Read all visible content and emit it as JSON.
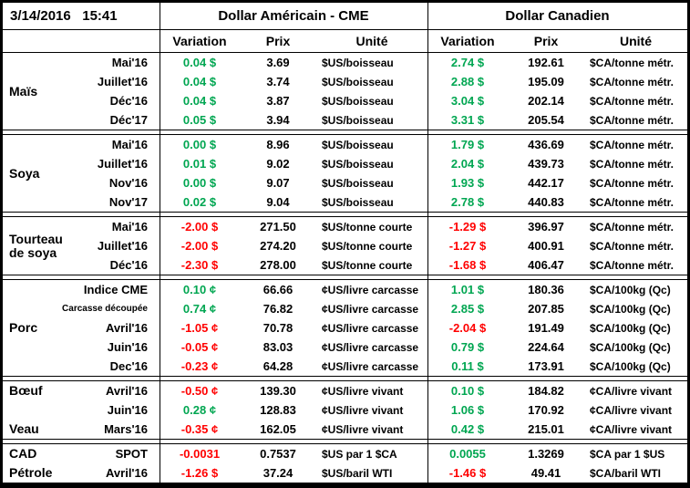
{
  "header": {
    "timestamp": "3/14/2016   15:41",
    "us_title": "Dollar Américain - CME",
    "ca_title": "Dollar Canadien",
    "col_variation": "Variation",
    "col_prix": "Prix",
    "col_unite": "Unité"
  },
  "colors": {
    "positive": "#00a651",
    "negative": "#ff0000",
    "border": "#000000"
  },
  "groups": [
    {
      "id": "mais",
      "label": "Maïs",
      "rows": [
        {
          "month": "Mai'16",
          "us": [
            "0.04 $",
            "3.69",
            "$US/boisseau"
          ],
          "ca": [
            "2.74 $",
            "192.61",
            "$CA/tonne métr."
          ]
        },
        {
          "month": "Juillet'16",
          "us": [
            "0.04 $",
            "3.74",
            "$US/boisseau"
          ],
          "ca": [
            "2.88 $",
            "195.09",
            "$CA/tonne métr."
          ]
        },
        {
          "month": "Déc'16",
          "us": [
            "0.04 $",
            "3.87",
            "$US/boisseau"
          ],
          "ca": [
            "3.04 $",
            "202.14",
            "$CA/tonne métr."
          ]
        },
        {
          "month": "Déc'17",
          "us": [
            "0.05 $",
            "3.94",
            "$US/boisseau"
          ],
          "ca": [
            "3.31 $",
            "205.54",
            "$CA/tonne métr."
          ]
        }
      ]
    },
    {
      "id": "soya",
      "label": "Soya",
      "rows": [
        {
          "month": "Mai'16",
          "us": [
            "0.00 $",
            "8.96",
            "$US/boisseau"
          ],
          "ca": [
            "1.79 $",
            "436.69",
            "$CA/tonne métr."
          ]
        },
        {
          "month": "Juillet'16",
          "us": [
            "0.01 $",
            "9.02",
            "$US/boisseau"
          ],
          "ca": [
            "2.04 $",
            "439.73",
            "$CA/tonne métr."
          ]
        },
        {
          "month": "Nov'16",
          "us": [
            "0.00 $",
            "9.07",
            "$US/boisseau"
          ],
          "ca": [
            "1.93 $",
            "442.17",
            "$CA/tonne métr."
          ]
        },
        {
          "month": "Nov'17",
          "us": [
            "0.02 $",
            "9.04",
            "$US/boisseau"
          ],
          "ca": [
            "2.78 $",
            "440.83",
            "$CA/tonne métr."
          ]
        }
      ]
    },
    {
      "id": "tourteau-de-soya",
      "label": "Tourteau de soya",
      "rows": [
        {
          "month": "Mai'16",
          "us": [
            "-2.00 $",
            "271.50",
            "$US/tonne courte"
          ],
          "ca": [
            "-1.29 $",
            "396.97",
            "$CA/tonne métr."
          ]
        },
        {
          "month": "Juillet'16",
          "us": [
            "-2.00 $",
            "274.20",
            "$US/tonne courte"
          ],
          "ca": [
            "-1.27 $",
            "400.91",
            "$CA/tonne métr."
          ]
        },
        {
          "month": "Déc'16",
          "us": [
            "-2.30 $",
            "278.00",
            "$US/tonne courte"
          ],
          "ca": [
            "-1.68 $",
            "406.47",
            "$CA/tonne métr."
          ]
        }
      ]
    },
    {
      "id": "porc",
      "label": "Porc",
      "rows": [
        {
          "month": "Indice CME",
          "us": [
            "0.10 ¢",
            "66.66",
            "¢US/livre carcasse"
          ],
          "ca": [
            "1.01 $",
            "180.36",
            "$CA/100kg (Qc)"
          ]
        },
        {
          "month": "Carcasse découpée",
          "small": true,
          "us": [
            "0.74 ¢",
            "76.82",
            "¢US/livre carcasse"
          ],
          "ca": [
            "2.85 $",
            "207.85",
            "$CA/100kg (Qc)"
          ]
        },
        {
          "month": "Avril'16",
          "us": [
            "-1.05 ¢",
            "70.78",
            "¢US/livre carcasse"
          ],
          "ca": [
            "-2.04 $",
            "191.49",
            "$CA/100kg (Qc)"
          ]
        },
        {
          "month": "Juin'16",
          "us": [
            "-0.05 ¢",
            "83.03",
            "¢US/livre carcasse"
          ],
          "ca": [
            "0.79 $",
            "224.64",
            "$CA/100kg (Qc)"
          ]
        },
        {
          "month": "Dec'16",
          "us": [
            "-0.23 ¢",
            "64.28",
            "¢US/livre carcasse"
          ],
          "ca": [
            "0.11 $",
            "173.91",
            "$CA/100kg (Qc)"
          ]
        }
      ]
    },
    {
      "id": "boeuf-veau",
      "label": "",
      "rows": [
        {
          "label": "Bœuf",
          "month": "Avril'16",
          "us": [
            "-0.50 ¢",
            "139.30",
            "¢US/livre vivant"
          ],
          "ca": [
            "0.10 $",
            "184.82",
            "¢CA/livre vivant"
          ]
        },
        {
          "label": "",
          "month": "Juin'16",
          "us": [
            "0.28 ¢",
            "128.83",
            "¢US/livre vivant"
          ],
          "ca": [
            "1.06 $",
            "170.92",
            "¢CA/livre vivant"
          ]
        },
        {
          "label": "Veau",
          "month": "Mars'16",
          "us": [
            "-0.35 ¢",
            "162.05",
            "¢US/livre vivant"
          ],
          "ca": [
            "0.42 $",
            "215.01",
            "¢CA/livre vivant"
          ]
        }
      ]
    },
    {
      "id": "cad-petrole",
      "label": "",
      "rows": [
        {
          "label": "CAD",
          "month": "SPOT",
          "us": [
            "-0.0031",
            "0.7537",
            "$US par 1 $CA"
          ],
          "ca": [
            "0.0055",
            "1.3269",
            "$CA par 1 $US"
          ]
        },
        {
          "label": "Pétrole",
          "month": "Avril'16",
          "us": [
            "-1.26 $",
            "37.24",
            "$US/baril WTI"
          ],
          "ca": [
            "-1.46 $",
            "49.41",
            "$CA/baril WTI"
          ]
        }
      ]
    }
  ]
}
